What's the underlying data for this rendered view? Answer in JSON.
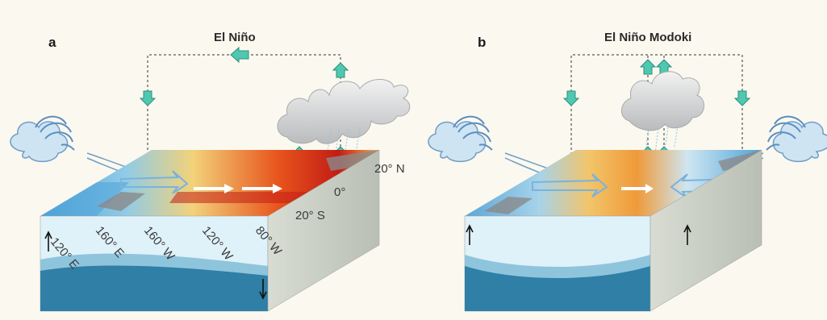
{
  "panels": [
    {
      "letter": "a",
      "title": "El Niño",
      "longitudes": [
        "120° E",
        "160° E",
        "160° W",
        "120° W",
        "80° W"
      ],
      "latitudes": [
        "20° N",
        "0°",
        "20° S"
      ]
    },
    {
      "letter": "b",
      "title": "El Niño Modoki"
    }
  ],
  "colors": {
    "background": "#fbf8ef",
    "ocean_surface": "#dff1f9",
    "thermocline_deep": "#2f7fa6",
    "warm_anomaly": "#e8551d",
    "cool_anomaly": "#4fa3d8",
    "arrow_fill": "#4fc8b0"
  }
}
